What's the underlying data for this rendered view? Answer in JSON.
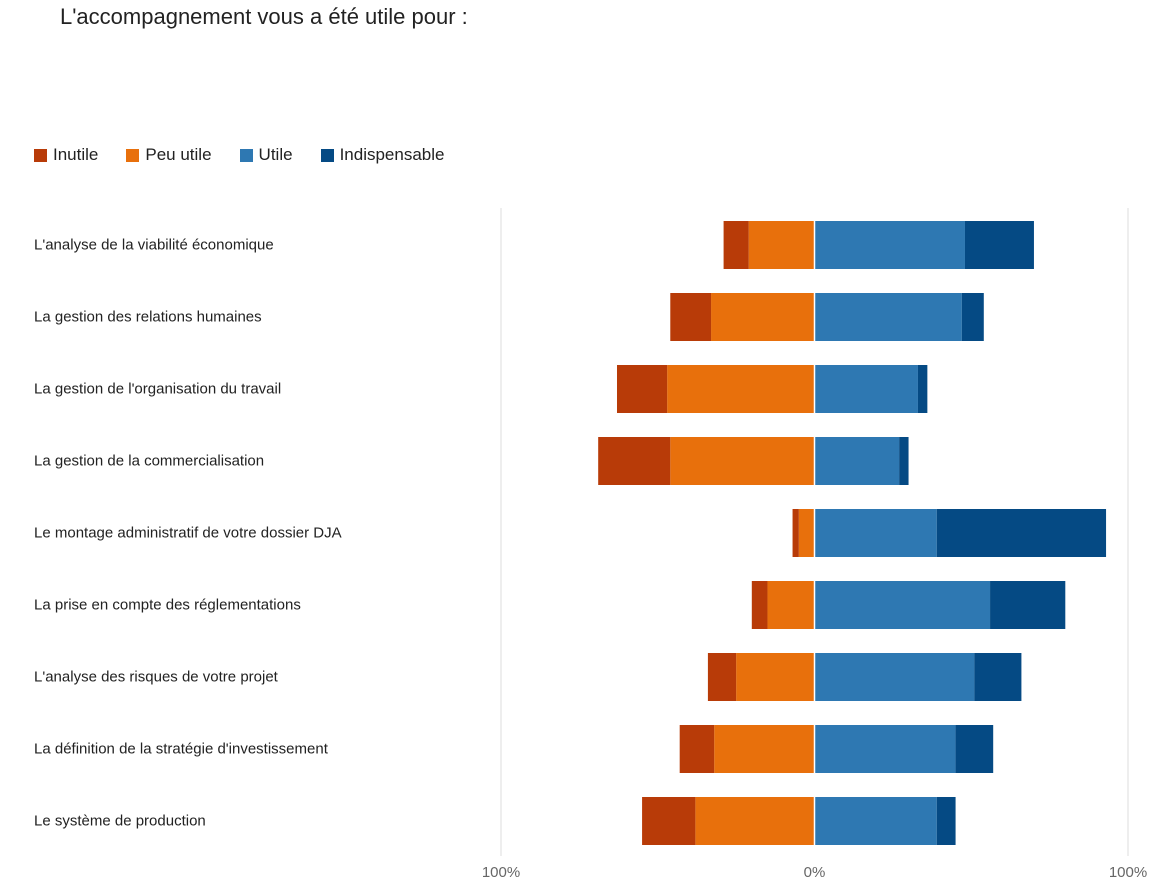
{
  "chart_data": {
    "type": "bar",
    "orientation": "horizontal-diverging",
    "title": "L'accompagnement vous a été utile pour :",
    "legend_position": "top-left",
    "xlim": [
      -100,
      100
    ],
    "x_ticks": [
      {
        "value": -100,
        "label": "100%"
      },
      {
        "value": 0,
        "label": "0%"
      },
      {
        "value": 100,
        "label": "100%"
      }
    ],
    "categories": [
      "L'analyse de la viabilité économique",
      "La gestion des relations humaines",
      "La gestion de l'organisation du travail",
      "La gestion de la commercialisation",
      "Le montage administratif de votre dossier DJA",
      "La prise en compte des réglementations",
      "L'analyse des risques de votre projet",
      "La définition de la stratégie d'investissement",
      "Le système de production"
    ],
    "series": [
      {
        "name": "Inutile",
        "color": "#b83b08",
        "side": "negative",
        "values": [
          8,
          13,
          16,
          23,
          2,
          5,
          9,
          11,
          17
        ]
      },
      {
        "name": "Peu utile",
        "color": "#e8700c",
        "side": "negative",
        "values": [
          21,
          33,
          47,
          46,
          5,
          15,
          25,
          32,
          38
        ]
      },
      {
        "name": "Utile",
        "color": "#2e78b2",
        "side": "positive",
        "values": [
          48,
          47,
          33,
          27,
          39,
          56,
          51,
          45,
          39
        ]
      },
      {
        "name": "Indispensable",
        "color": "#054a84",
        "side": "positive",
        "values": [
          22,
          7,
          3,
          3,
          54,
          24,
          15,
          12,
          6
        ]
      }
    ],
    "grid": {
      "vertical_lines": [
        -100,
        0,
        100
      ],
      "color": "#dddddd"
    }
  }
}
